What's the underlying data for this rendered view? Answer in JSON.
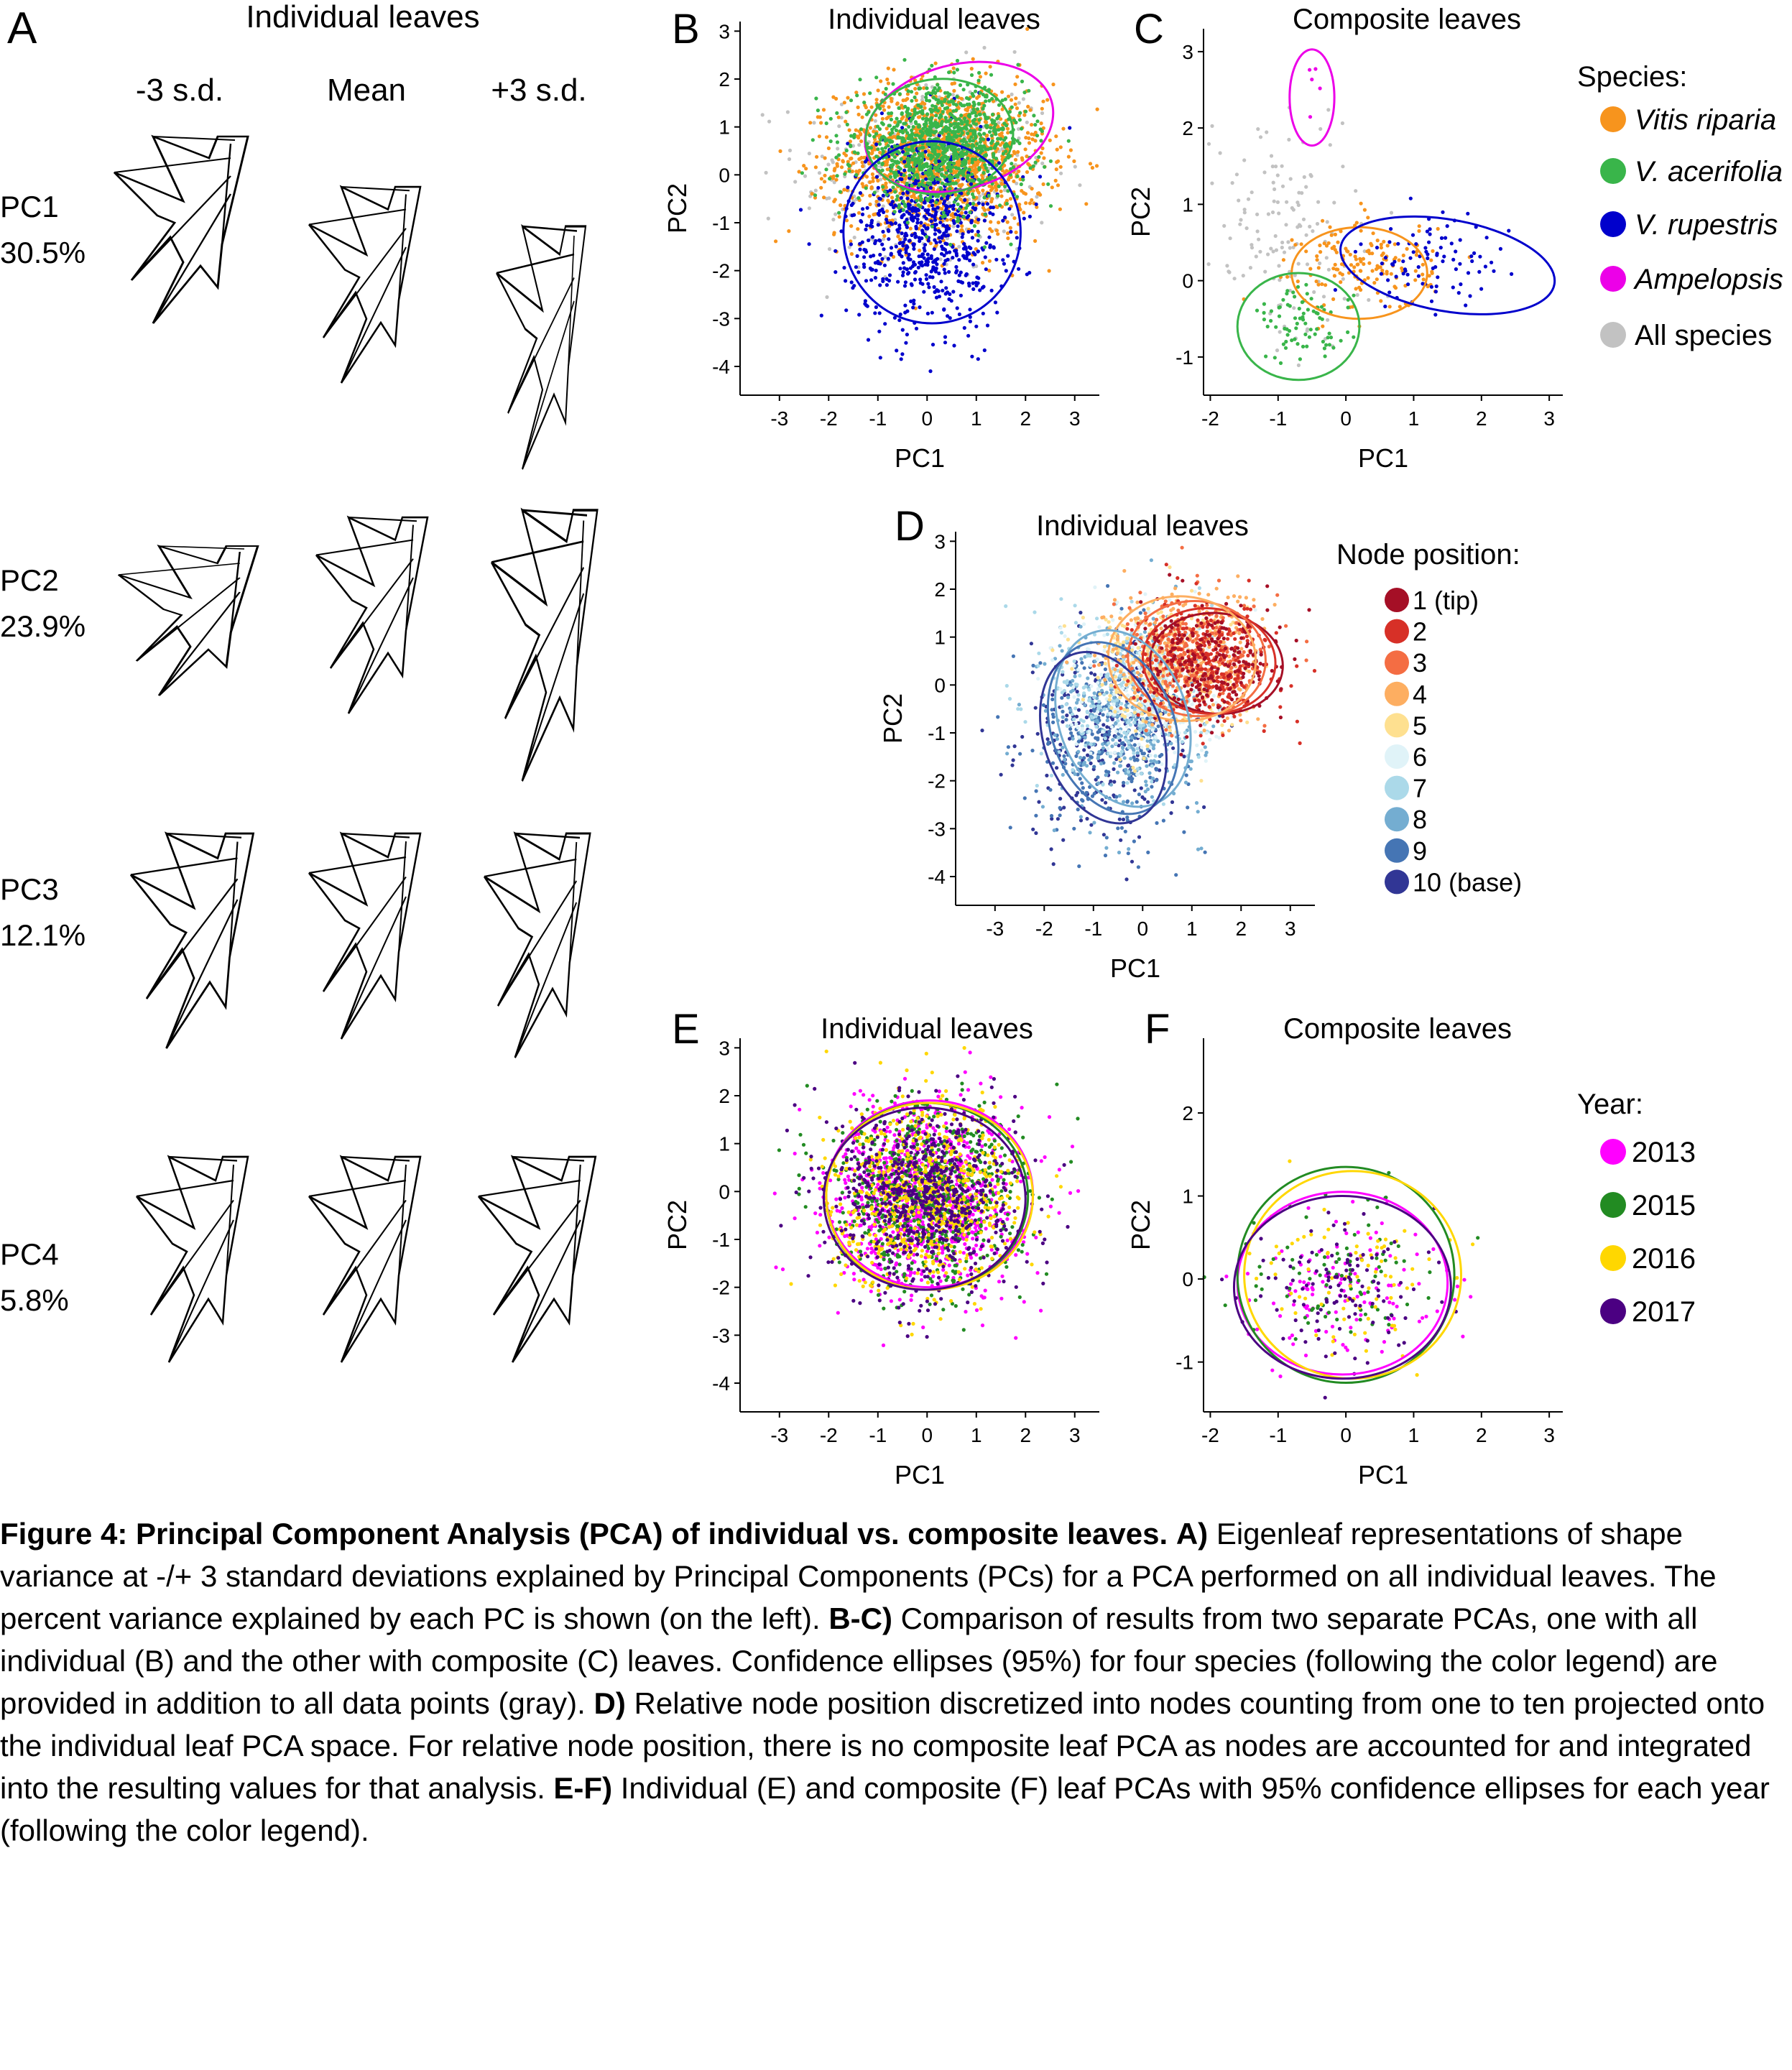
{
  "panel_a": {
    "letter": "A",
    "title": "Individual leaves",
    "columns": [
      "-3 s.d.",
      "Mean",
      "+3 s.d."
    ],
    "rows": [
      {
        "pc": "PC1",
        "variance": "30.5%"
      },
      {
        "pc": "PC2",
        "variance": "23.9%"
      },
      {
        "pc": "PC3",
        "variance": 12.1,
        "variance_label": "12.1%"
      },
      {
        "pc": "PC4",
        "variance": "5.8%"
      }
    ]
  },
  "legends": {
    "species": {
      "title": "Species:",
      "entries": [
        {
          "label": "Vitis riparia",
          "color": "#F7941D",
          "italic": true
        },
        {
          "label": "V. acerifolia",
          "color": "#39B54A",
          "italic": true
        },
        {
          "label": "V. rupestris",
          "color": "#0000CC",
          "italic": true
        },
        {
          "label": "Ampelopsis",
          "color": "#EC00E8",
          "italic": true
        },
        {
          "label": "All species",
          "color": "#C2C2C2",
          "italic": false
        }
      ]
    },
    "node": {
      "title": "Node position:",
      "entries": [
        {
          "label": "1 (tip)",
          "color": "#A50F26"
        },
        {
          "label": "2",
          "color": "#D73027"
        },
        {
          "label": "3",
          "color": "#F46D43"
        },
        {
          "label": "4",
          "color": "#FDAE61"
        },
        {
          "label": "5",
          "color": "#FEE090"
        },
        {
          "label": "6",
          "color": "#E0F3F8"
        },
        {
          "label": "7",
          "color": "#ABD9E9"
        },
        {
          "label": "8",
          "color": "#74ADD1"
        },
        {
          "label": "9",
          "color": "#4575B4"
        },
        {
          "label": "10 (base)",
          "color": "#313695"
        }
      ]
    },
    "year": {
      "title": "Year:",
      "entries": [
        {
          "label": "2013",
          "color": "#FF00FF"
        },
        {
          "label": "2015",
          "color": "#228B22"
        },
        {
          "label": "2016",
          "color": "#FFD700"
        },
        {
          "label": "2017",
          "color": "#4B0082"
        }
      ]
    }
  },
  "chart_data": [
    {
      "panel": "B",
      "type": "scatter",
      "title": "Individual leaves",
      "xlabel": "PC1",
      "ylabel": "PC2",
      "xlim": [
        -3.8,
        3.5
      ],
      "ylim": [
        -4.6,
        3.2
      ],
      "xticks": [
        -3,
        -2,
        -1,
        0,
        1,
        2,
        3
      ],
      "yticks": [
        -4,
        -3,
        -2,
        -1,
        0,
        1,
        2,
        3
      ],
      "series": [
        {
          "group": "All species",
          "color": "#C2C2C2",
          "n": 300,
          "cx": 0,
          "cy": 0,
          "sx": 1.3,
          "sy": 1.1
        },
        {
          "group": "Vitis riparia",
          "color": "#F7941D",
          "n": 1400,
          "cx": 0.3,
          "cy": 0.3,
          "sx": 1.05,
          "sy": 0.8
        },
        {
          "group": "V. rupestris",
          "color": "#0000CC",
          "n": 700,
          "cx": 0,
          "cy": -1.2,
          "sx": 0.8,
          "sy": 1.0
        },
        {
          "group": "V. acerifolia",
          "color": "#39B54A",
          "n": 1000,
          "cx": 0.3,
          "cy": 0.6,
          "sx": 0.85,
          "sy": 0.6
        }
      ],
      "ellipses": [
        {
          "group": "Ampelopsis",
          "color": "#EC00E8",
          "cx": 0.65,
          "cy": 1.0,
          "rx": 1.95,
          "ry": 1.3,
          "angle": 15
        },
        {
          "group": "V. acerifolia",
          "color": "#39B54A",
          "cx": 0.25,
          "cy": 0.8,
          "rx": 1.5,
          "ry": 1.2,
          "angle": 5
        },
        {
          "group": "V. rupestris",
          "color": "#0000CC",
          "cx": 0.1,
          "cy": -1.2,
          "rx": 1.8,
          "ry": 1.9,
          "angle": 0
        }
      ]
    },
    {
      "panel": "C",
      "type": "scatter",
      "title": "Composite leaves",
      "xlabel": "PC1",
      "ylabel": "PC2",
      "xlim": [
        -2.1,
        3.2
      ],
      "ylim": [
        -1.5,
        3.3
      ],
      "xticks": [
        -2,
        -1,
        0,
        1,
        2,
        3
      ],
      "yticks": [
        -1,
        0,
        1,
        2,
        3
      ],
      "series": [
        {
          "group": "All species",
          "color": "#C2C2C2",
          "n": 140,
          "cx": -0.9,
          "cy": 0.7,
          "sx": 0.6,
          "sy": 0.8
        },
        {
          "group": "Vitis riparia",
          "color": "#F7941D",
          "n": 160,
          "cx": 0.3,
          "cy": 0.2,
          "sx": 0.5,
          "sy": 0.3
        },
        {
          "group": "V. acerifolia",
          "color": "#39B54A",
          "n": 80,
          "cx": -0.6,
          "cy": -0.6,
          "sx": 0.35,
          "sy": 0.25
        },
        {
          "group": "V. rupestris",
          "color": "#0000CC",
          "n": 90,
          "cx": 1.3,
          "cy": 0.25,
          "sx": 0.55,
          "sy": 0.3
        },
        {
          "group": "Ampelopsis",
          "color": "#EC00E8",
          "n": 5,
          "cx": -0.5,
          "cy": 2.5,
          "sx": 0.1,
          "sy": 0.2
        }
      ],
      "ellipses": [
        {
          "group": "Ampelopsis",
          "color": "#EC00E8",
          "cx": -0.5,
          "cy": 2.4,
          "rx": 0.33,
          "ry": 0.63,
          "angle": 0
        },
        {
          "group": "Vitis riparia",
          "color": "#F7941D",
          "cx": 0.2,
          "cy": 0.1,
          "rx": 1.0,
          "ry": 0.6,
          "angle": 0
        },
        {
          "group": "V. acerifolia",
          "color": "#39B54A",
          "cx": -0.7,
          "cy": -0.6,
          "rx": 0.9,
          "ry": 0.7,
          "angle": 0
        },
        {
          "group": "V. rupestris",
          "color": "#0000CC",
          "cx": 1.5,
          "cy": 0.2,
          "rx": 1.6,
          "ry": 0.6,
          "angle": -10
        }
      ]
    },
    {
      "panel": "D",
      "type": "scatter",
      "title": "Individual leaves",
      "xlabel": "PC1",
      "ylabel": "PC2",
      "xlim": [
        -3.8,
        3.5
      ],
      "ylim": [
        -4.6,
        3.2
      ],
      "xticks": [
        -3,
        -2,
        -1,
        0,
        1,
        2,
        3
      ],
      "yticks": [
        -4,
        -3,
        -2,
        -1,
        0,
        1,
        2,
        3
      ],
      "series": [
        {
          "group": "10 (base)",
          "color": "#313695",
          "n": 250,
          "cx": -0.8,
          "cy": -1.2,
          "sx": 0.8,
          "sy": 1.0
        },
        {
          "group": "9",
          "color": "#4575B4",
          "n": 300,
          "cx": -0.6,
          "cy": -1.0,
          "sx": 0.8,
          "sy": 1.0
        },
        {
          "group": "8",
          "color": "#74ADD1",
          "n": 300,
          "cx": -0.4,
          "cy": -0.7,
          "sx": 0.8,
          "sy": 1.0
        },
        {
          "group": "7",
          "color": "#ABD9E9",
          "n": 300,
          "cx": -0.2,
          "cy": -0.3,
          "sx": 0.8,
          "sy": 0.9
        },
        {
          "group": "6",
          "color": "#E0F3F8",
          "n": 300,
          "cx": 0.1,
          "cy": 0.1,
          "sx": 0.8,
          "sy": 0.8
        },
        {
          "group": "5",
          "color": "#FEE090",
          "n": 300,
          "cx": 0.4,
          "cy": 0.4,
          "sx": 0.8,
          "sy": 0.7
        },
        {
          "group": "4",
          "color": "#FDAE61",
          "n": 300,
          "cx": 0.8,
          "cy": 0.6,
          "sx": 0.8,
          "sy": 0.7
        },
        {
          "group": "3",
          "color": "#F46D43",
          "n": 300,
          "cx": 1.1,
          "cy": 0.6,
          "sx": 0.7,
          "sy": 0.6
        },
        {
          "group": "2",
          "color": "#D73027",
          "n": 300,
          "cx": 1.3,
          "cy": 0.5,
          "sx": 0.7,
          "sy": 0.6
        },
        {
          "group": "1 (tip)",
          "color": "#A50F26",
          "n": 250,
          "cx": 1.4,
          "cy": 0.4,
          "sx": 0.7,
          "sy": 0.6
        }
      ],
      "ellipses": [
        {
          "group": "1 (tip)",
          "color": "#A50F26",
          "cx": 1.5,
          "cy": 0.45,
          "rx": 1.35,
          "ry": 1.05,
          "angle": -5
        },
        {
          "group": "2",
          "color": "#D73027",
          "cx": 1.35,
          "cy": 0.5,
          "rx": 1.35,
          "ry": 1.1,
          "angle": -5
        },
        {
          "group": "3",
          "color": "#F46D43",
          "cx": 1.1,
          "cy": 0.55,
          "rx": 1.4,
          "ry": 1.2,
          "angle": -5
        },
        {
          "group": "4",
          "color": "#FDAE61",
          "cx": 0.8,
          "cy": 0.55,
          "rx": 1.5,
          "ry": 1.3,
          "angle": -5
        },
        {
          "group": "8",
          "color": "#74ADD1",
          "cx": -0.4,
          "cy": -0.7,
          "rx": 1.3,
          "ry": 1.9,
          "angle": 20
        },
        {
          "group": "9",
          "color": "#4575B4",
          "cx": -0.6,
          "cy": -0.9,
          "rx": 1.25,
          "ry": 1.85,
          "angle": 20
        },
        {
          "group": "10 (base)",
          "color": "#313695",
          "cx": -0.8,
          "cy": -1.1,
          "rx": 1.2,
          "ry": 1.85,
          "angle": 20
        }
      ]
    },
    {
      "panel": "E",
      "type": "scatter",
      "title": "Individual leaves",
      "xlabel": "PC1",
      "ylabel": "PC2",
      "xlim": [
        -3.8,
        3.5
      ],
      "ylim": [
        -4.6,
        3.2
      ],
      "xticks": [
        -3,
        -2,
        -1,
        0,
        1,
        2,
        3
      ],
      "yticks": [
        -4,
        -3,
        -2,
        -1,
        0,
        1,
        2,
        3
      ],
      "series": [
        {
          "group": "2013",
          "color": "#FF00FF",
          "n": 900,
          "cx": 0,
          "cy": -0.1,
          "sx": 0.95,
          "sy": 0.95
        },
        {
          "group": "2015",
          "color": "#228B22",
          "n": 700,
          "cx": 0,
          "cy": -0.1,
          "sx": 0.95,
          "sy": 0.95
        },
        {
          "group": "2016",
          "color": "#FFD700",
          "n": 700,
          "cx": 0,
          "cy": -0.1,
          "sx": 0.95,
          "sy": 0.95
        },
        {
          "group": "2017",
          "color": "#4B0082",
          "n": 700,
          "cx": 0,
          "cy": -0.1,
          "sx": 0.95,
          "sy": 0.95
        }
      ],
      "ellipses": [
        {
          "group": "2013",
          "color": "#FF00FF",
          "cx": 0.05,
          "cy": -0.05,
          "rx": 2.1,
          "ry": 1.95,
          "angle": 0
        },
        {
          "group": "2015",
          "color": "#228B22",
          "cx": 0,
          "cy": -0.1,
          "rx": 2.05,
          "ry": 1.95,
          "angle": 0
        },
        {
          "group": "2016",
          "color": "#FFD700",
          "cx": 0.05,
          "cy": -0.1,
          "rx": 2.1,
          "ry": 1.95,
          "angle": 0
        },
        {
          "group": "2017",
          "color": "#4B0082",
          "cx": -0.05,
          "cy": -0.15,
          "rx": 2.05,
          "ry": 1.9,
          "angle": 0
        }
      ]
    },
    {
      "panel": "F",
      "type": "scatter",
      "title": "Composite leaves",
      "xlabel": "PC1",
      "ylabel": "PC2",
      "xlim": [
        -2.1,
        3.2
      ],
      "ylim": [
        -1.6,
        2.9
      ],
      "xticks": [
        -2,
        -1,
        0,
        1,
        2,
        3
      ],
      "yticks": [
        -1,
        0,
        1,
        2
      ],
      "series": [
        {
          "group": "2013",
          "color": "#FF00FF",
          "n": 130,
          "cx": 0,
          "cy": -0.1,
          "sx": 0.7,
          "sy": 0.45
        },
        {
          "group": "2015",
          "color": "#228B22",
          "n": 90,
          "cx": 0,
          "cy": 0,
          "sx": 0.7,
          "sy": 0.45
        },
        {
          "group": "2016",
          "color": "#FFD700",
          "n": 80,
          "cx": 0.1,
          "cy": 0.1,
          "sx": 0.7,
          "sy": 0.45
        },
        {
          "group": "2017",
          "color": "#4B0082",
          "n": 110,
          "cx": -0.1,
          "cy": -0.15,
          "sx": 0.65,
          "sy": 0.45
        }
      ],
      "ellipses": [
        {
          "group": "2013",
          "color": "#FF00FF",
          "cx": -0.05,
          "cy": -0.05,
          "rx": 1.55,
          "ry": 1.1,
          "angle": 0
        },
        {
          "group": "2015",
          "color": "#228B22",
          "cx": 0,
          "cy": 0.05,
          "rx": 1.6,
          "ry": 1.3,
          "angle": 0
        },
        {
          "group": "2016",
          "color": "#FFD700",
          "cx": 0.1,
          "cy": 0.05,
          "rx": 1.6,
          "ry": 1.25,
          "angle": 0
        },
        {
          "group": "2017",
          "color": "#4B0082",
          "cx": -0.05,
          "cy": -0.1,
          "rx": 1.6,
          "ry": 1.1,
          "angle": 0
        }
      ]
    }
  ],
  "caption": {
    "figure_label": "Figure 4:",
    "figure_title": "Principal Component Analysis (PCA) of individual vs. composite leaves.",
    "a_label": "A)",
    "a_text": "Eigenleaf representations of shape variance at -/+ 3 standard deviations explained by Principal Components (PCs) for a PCA performed on all individual leaves. The percent variance explained by each PC is shown (on the left).",
    "bc_label": "B-C)",
    "bc_text": "Comparison of results from two separate PCAs, one with all individual (B) and the other with composite (C) leaves. Confidence ellipses (95%) for four species (following the color legend) are provided in addition to all data points (gray).",
    "d_label": "D)",
    "d_text": "Relative node position discretized into nodes counting from one to ten projected onto the individual leaf PCA space. For relative node position, there is no composite leaf PCA as nodes are accounted for and integrated into the resulting values for that analysis.",
    "ef_label": "E-F)",
    "ef_text": "Individual (E) and composite (F) leaf PCAs with 95% confidence ellipses for each year (following the color legend)."
  }
}
